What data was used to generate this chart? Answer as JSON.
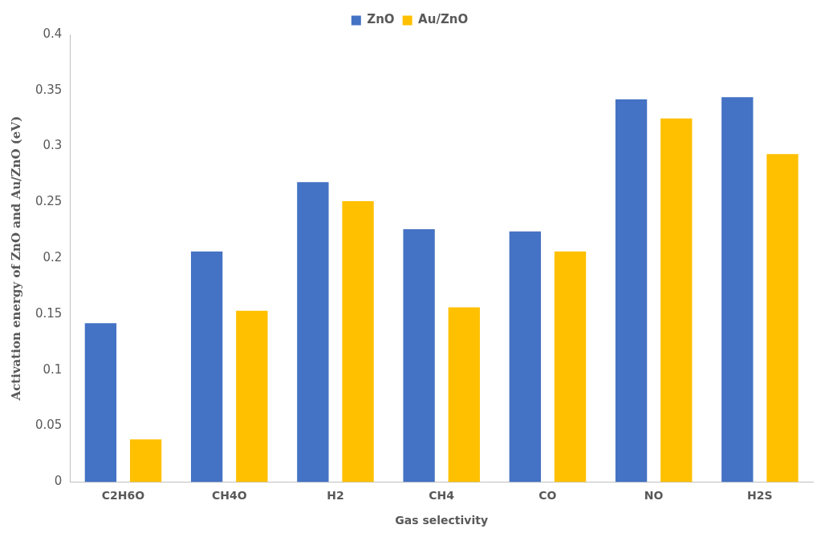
{
  "chart_data": {
    "type": "bar",
    "xlabel": "Gas selectivity",
    "ylabel": "Activation energy of ZnO and Au/ZnO (eV)",
    "categories": [
      "C2H6O",
      "CH4O",
      "H2",
      "CH4",
      "CO",
      "NO",
      "H2S"
    ],
    "series": [
      {
        "name": "ZnO",
        "color": "#4472c4",
        "values": [
          0.142,
          0.206,
          0.268,
          0.226,
          0.224,
          0.342,
          0.344
        ]
      },
      {
        "name": "Au/ZnO",
        "color": "#ffc000",
        "values": [
          0.038,
          0.153,
          0.251,
          0.156,
          0.206,
          0.325,
          0.293
        ]
      }
    ],
    "ylim": [
      0,
      0.4
    ],
    "yticks": [
      0,
      0.05,
      0.1,
      0.15,
      0.2,
      0.25,
      0.3,
      0.35,
      0.4
    ],
    "grid": false,
    "legend": "top"
  }
}
